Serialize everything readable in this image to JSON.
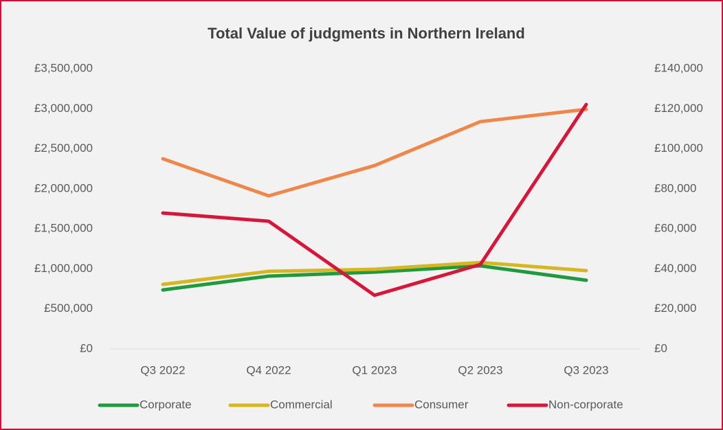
{
  "chart_data": {
    "type": "line",
    "title": "Total Value of judgments in Northern Ireland",
    "categories": [
      "Q3 2022",
      "Q4 2022",
      "Q1 2023",
      "Q2 2023",
      "Q3 2023"
    ],
    "series": [
      {
        "name": "Corporate",
        "color": "#1f9a3e",
        "values": [
          737000,
          909000,
          960000,
          1038000,
          858000
        ]
      },
      {
        "name": "Commercial",
        "color": "#d6b623",
        "values": [
          806000,
          969000,
          995000,
          1080000,
          978000
        ]
      },
      {
        "name": "Consumer",
        "color": "#f0874a",
        "values": [
          2375000,
          1912000,
          2290000,
          2839000,
          2993000
        ]
      },
      {
        "name": "Non-corporate",
        "color": "#d5173b",
        "axis": "y2",
        "values": [
          67900,
          63800,
          26800,
          42200,
          122100
        ]
      }
    ],
    "ylim": [
      0,
      3500000
    ],
    "yticks": [
      {
        "value": 0,
        "label": "£0"
      },
      {
        "value": 500000,
        "label": "£500,000"
      },
      {
        "value": 1000000,
        "label": "£1,000,000"
      },
      {
        "value": 1500000,
        "label": "£1,500,000"
      },
      {
        "value": 2000000,
        "label": "£2,000,000"
      },
      {
        "value": 2500000,
        "label": "£2,500,000"
      },
      {
        "value": 3000000,
        "label": "£3,000,000"
      },
      {
        "value": 3500000,
        "label": "£3,500,000"
      }
    ],
    "y2lim": [
      0,
      140000
    ],
    "y2ticks": [
      {
        "value": 0,
        "label": "£0"
      },
      {
        "value": 20000,
        "label": "£20,000"
      },
      {
        "value": 40000,
        "label": "£40,000"
      },
      {
        "value": 60000,
        "label": "£60,000"
      },
      {
        "value": 80000,
        "label": "£80,000"
      },
      {
        "value": 100000,
        "label": "£100,000"
      },
      {
        "value": 120000,
        "label": "£120,000"
      },
      {
        "value": 140000,
        "label": "£140,000"
      }
    ],
    "grid": false,
    "legend": "bottom"
  }
}
